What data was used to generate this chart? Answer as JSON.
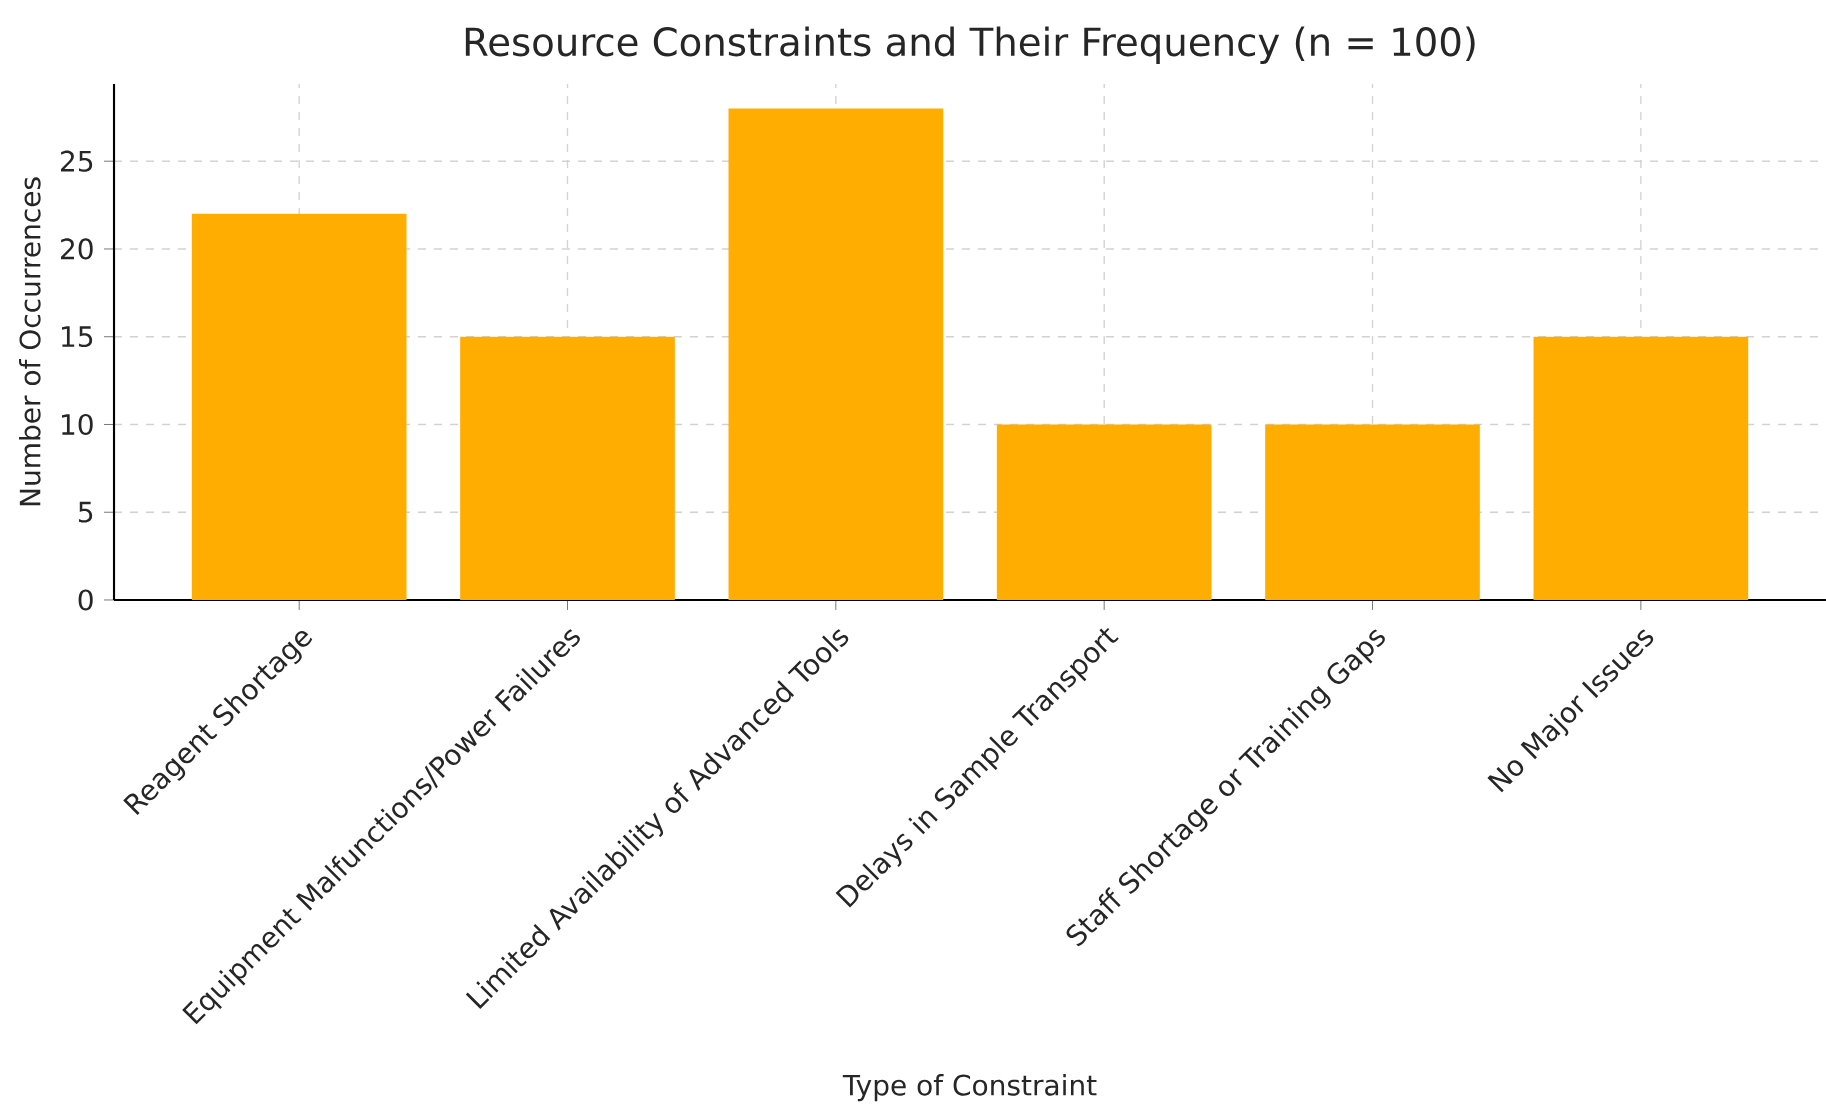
{
  "chart_data": {
    "type": "bar",
    "title": "Resource Constraints and Their Frequency (n = 100)",
    "xlabel": "Type of Constraint",
    "ylabel": "Number of Occurrences",
    "categories": [
      "Reagent Shortage",
      "Equipment Malfunctions/Power Failures",
      "Limited Availability of Advanced Tools",
      "Delays in Sample Transport",
      "Staff Shortage or Training Gaps",
      "No Major Issues"
    ],
    "values": [
      22,
      15,
      28,
      10,
      10,
      15
    ],
    "color": "#ffae00",
    "ylim": [
      0,
      29.4
    ],
    "yticks": [
      0,
      5,
      10,
      15,
      20,
      25
    ],
    "grid": true
  }
}
